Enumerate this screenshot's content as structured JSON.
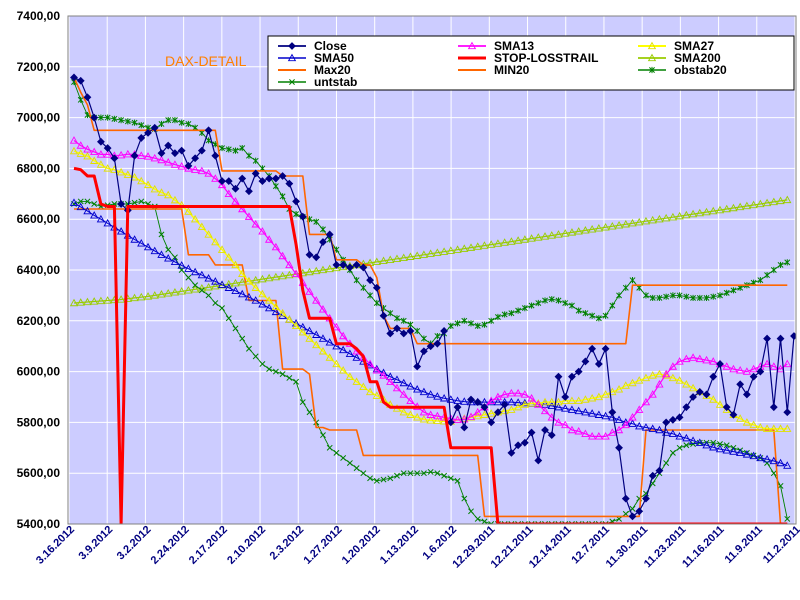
{
  "chart_data": {
    "type": "line",
    "title": "DAX-DETAIL",
    "ylim": [
      5400,
      7400
    ],
    "y_ticks": [
      "7400,00",
      "7200,00",
      "7000,00",
      "6800,00",
      "6600,00",
      "6400,00",
      "6200,00",
      "6000,00",
      "5800,00",
      "5600,00",
      "5400,00"
    ],
    "x_tick_labels": [
      "3.16.2012",
      "3.9.2012",
      "3.2.2012",
      "2.24.2012",
      "2.17.2012",
      "2.10.2012",
      "2.3.2012",
      "1.27.2012",
      "1.20.2012",
      "1.13.2012",
      "1.6.2012",
      "12.29.2011",
      "12.21.2011",
      "12.14.2011",
      "12.7.2011",
      "11.30.2011",
      "11.23.2011",
      "11.16.2011",
      "11.9.2011",
      "11.2.2011"
    ],
    "x_order": "newest-first",
    "grid": true,
    "legend_position": "top-right",
    "colors": {
      "plot_background": "#ccccff",
      "grid": "#ffffff",
      "close": "#000080",
      "sma13": "#ff00ff",
      "sma27": "#ffff00",
      "sma50": "#0000cc",
      "stoploss": "#ff0000",
      "sma200": "#99cc00",
      "max20": "#ff6600",
      "min20": "#ff6600",
      "obstab20": "#008000",
      "untstab": "#008000"
    },
    "series": [
      {
        "name": "Close",
        "key": "close",
        "values": [
          7158,
          7145,
          7080,
          7000,
          6905,
          6880,
          6840,
          6660,
          6635,
          6850,
          6920,
          6940,
          6960,
          6860,
          6890,
          6860,
          6870,
          6810,
          6840,
          6870,
          6950,
          6850,
          6750,
          6750,
          6720,
          6760,
          6710,
          6780,
          6750,
          6760,
          6760,
          6770,
          6740,
          6670,
          6610,
          6460,
          6450,
          6510,
          6540,
          6420,
          6420,
          6410,
          6420,
          6410,
          6360,
          6330,
          6220,
          6150,
          6170,
          6150,
          6160,
          6020,
          6080,
          6100,
          6110,
          6160,
          5800,
          5860,
          5780,
          5890,
          5880,
          5860,
          5800,
          5840,
          5870,
          5680,
          5710,
          5720,
          5760,
          5650,
          5770,
          5750,
          5980,
          5900,
          5980,
          6000,
          6040,
          6090,
          6030,
          6090,
          5840,
          5700,
          5500,
          5430,
          5450,
          5500,
          5590,
          5610,
          5800,
          5810,
          5820,
          5860,
          5900,
          5920,
          5910,
          5980,
          6030,
          5860,
          5830,
          5950,
          5910,
          5980,
          6000,
          6130,
          5860,
          6130,
          5840,
          6140
        ]
      },
      {
        "name": "SMA13",
        "key": "sma13",
        "values": [
          6910,
          6890,
          6875,
          6865,
          6855,
          6855,
          6850,
          6852,
          6856,
          6855,
          6850,
          6847,
          6840,
          6833,
          6824,
          6815,
          6808,
          6800,
          6795,
          6790,
          6780,
          6760,
          6735,
          6700,
          6670,
          6640,
          6610,
          6580,
          6552,
          6520,
          6490,
          6455,
          6420,
          6385,
          6350,
          6315,
          6280,
          6245,
          6210,
          6175,
          6140,
          6110,
          6080,
          6055,
          6030,
          6005,
          5985,
          5960,
          5935,
          5910,
          5885,
          5862,
          5840,
          5830,
          5825,
          5820,
          5815,
          5810,
          5812,
          5822,
          5840,
          5860,
          5885,
          5900,
          5910,
          5915,
          5915,
          5910,
          5895,
          5870,
          5845,
          5820,
          5800,
          5790,
          5770,
          5765,
          5755,
          5745,
          5745,
          5745,
          5760,
          5770,
          5790,
          5820,
          5850,
          5880,
          5910,
          5950,
          5990,
          6020,
          6040,
          6050,
          6055,
          6050,
          6045,
          6040,
          6030,
          6020,
          6010,
          6005,
          6000,
          6010,
          6020,
          6030,
          6020,
          6010,
          6030
        ]
      },
      {
        "name": "SMA27",
        "key": "sma27",
        "values": [
          6868,
          6858,
          6848,
          6830,
          6815,
          6800,
          6795,
          6785,
          6775,
          6765,
          6750,
          6735,
          6718,
          6705,
          6695,
          6675,
          6655,
          6630,
          6600,
          6570,
          6540,
          6510,
          6480,
          6450,
          6420,
          6385,
          6355,
          6330,
          6305,
          6280,
          6255,
          6230,
          6205,
          6180,
          6155,
          6130,
          6105,
          6080,
          6055,
          6030,
          6005,
          5980,
          5960,
          5940,
          5920,
          5905,
          5890,
          5870,
          5855,
          5840,
          5830,
          5820,
          5812,
          5808,
          5806,
          5804,
          5803,
          5810,
          5815,
          5820,
          5825,
          5830,
          5835,
          5840,
          5845,
          5850,
          5860,
          5870,
          5875,
          5875,
          5880,
          5880,
          5880,
          5885,
          5885,
          5885,
          5890,
          5895,
          5900,
          5910,
          5920,
          5930,
          5945,
          5955,
          5965,
          5975,
          5985,
          5990,
          5985,
          5975,
          5965,
          5950,
          5935,
          5920,
          5905,
          5890,
          5870,
          5850,
          5830,
          5815,
          5800,
          5790,
          5780,
          5775,
          5775,
          5775,
          5775
        ]
      },
      {
        "name": "SMA50",
        "key": "sma50",
        "values": [
          6665,
          6648,
          6632,
          6615,
          6600,
          6584,
          6568,
          6552,
          6536,
          6520,
          6505,
          6490,
          6475,
          6460,
          6446,
          6432,
          6418,
          6405,
          6392,
          6380,
          6367,
          6355,
          6342,
          6330,
          6318,
          6305,
          6293,
          6280,
          6265,
          6250,
          6235,
          6220,
          6205,
          6190,
          6175,
          6160,
          6145,
          6130,
          6115,
          6100,
          6085,
          6070,
          6055,
          6040,
          6025,
          6010,
          5995,
          5980,
          5968,
          5955,
          5942,
          5930,
          5920,
          5910,
          5902,
          5895,
          5890,
          5885,
          5882,
          5880,
          5880,
          5880,
          5880,
          5880,
          5880,
          5880,
          5878,
          5876,
          5874,
          5872,
          5870,
          5865,
          5860,
          5855,
          5850,
          5845,
          5840,
          5835,
          5830,
          5825,
          5820,
          5810,
          5800,
          5795,
          5785,
          5780,
          5775,
          5770,
          5760,
          5755,
          5745,
          5738,
          5728,
          5720,
          5710,
          5702,
          5695,
          5690,
          5685,
          5680,
          5674,
          5668,
          5660,
          5655,
          5648,
          5640,
          5630
        ]
      },
      {
        "name": "STOP-LOSSTRAIL",
        "key": "stoploss",
        "values": [
          6800,
          6795,
          6770,
          6770,
          6660,
          6650,
          6650,
          5400,
          6650,
          6650,
          6650,
          6650,
          6650,
          6650,
          6650,
          6650,
          6650,
          6650,
          6650,
          6650,
          6650,
          6650,
          6650,
          6650,
          6650,
          6650,
          6650,
          6650,
          6650,
          6650,
          6650,
          6650,
          6650,
          6500,
          6320,
          6210,
          6210,
          6210,
          6210,
          6110,
          6110,
          6110,
          6090,
          6060,
          5960,
          5960,
          5880,
          5860,
          5860,
          5860,
          5860,
          5860,
          5860,
          5860,
          5860,
          5860,
          5700,
          5700,
          5700,
          5700,
          5700,
          5700,
          5700,
          5400,
          5400,
          5400,
          5400,
          5400,
          5400,
          5400,
          5400,
          5400,
          5400,
          5400,
          5400,
          5400,
          5400,
          5400,
          5400,
          5400,
          5400,
          5400,
          5400,
          5400,
          5400,
          5400,
          5400,
          5400,
          5400,
          5400,
          5400,
          5400,
          5400,
          5400,
          5400,
          5400,
          5400,
          5400,
          5400,
          5400,
          5400,
          5400,
          5400,
          5400,
          5400,
          5400,
          5400
        ]
      },
      {
        "name": "SMA200",
        "key": "sma200",
        "values": [
          6270,
          6272,
          6274,
          6276,
          6278,
          6280,
          6282,
          6284,
          6287,
          6290,
          6293,
          6296,
          6300,
          6304,
          6308,
          6312,
          6316,
          6320,
          6324,
          6328,
          6332,
          6336,
          6340,
          6344,
          6348,
          6352,
          6356,
          6360,
          6364,
          6368,
          6372,
          6376,
          6380,
          6384,
          6388,
          6392,
          6396,
          6400,
          6404,
          6408,
          6412,
          6416,
          6420,
          6424,
          6428,
          6432,
          6436,
          6440,
          6444,
          6448,
          6452,
          6456,
          6460,
          6464,
          6468,
          6472,
          6476,
          6480,
          6484,
          6488,
          6492,
          6496,
          6500,
          6504,
          6508,
          6512,
          6516,
          6520,
          6524,
          6528,
          6532,
          6536,
          6540,
          6544,
          6548,
          6552,
          6556,
          6560,
          6564,
          6568,
          6572,
          6576,
          6580,
          6584,
          6588,
          6592,
          6596,
          6600,
          6604,
          6608,
          6612,
          6616,
          6620,
          6624,
          6628,
          6632,
          6636,
          6640,
          6644,
          6648,
          6652,
          6656,
          6660,
          6664,
          6668,
          6672,
          6676
        ]
      },
      {
        "name": "Max20",
        "key": "max20",
        "values": [
          7158,
          7100,
          7050,
          6950,
          6950,
          6950,
          6950,
          6950,
          6950,
          6950,
          6950,
          6950,
          6950,
          6950,
          6950,
          6950,
          6950,
          6950,
          6950,
          6950,
          6950,
          6950,
          6790,
          6790,
          6790,
          6790,
          6790,
          6790,
          6790,
          6790,
          6790,
          6770,
          6770,
          6770,
          6770,
          6540,
          6540,
          6540,
          6540,
          6440,
          6440,
          6440,
          6440,
          6420,
          6420,
          6370,
          6220,
          6170,
          6170,
          6170,
          6170,
          6110,
          6110,
          6110,
          6110,
          6110,
          6110,
          6110,
          6110,
          6110,
          6110,
          6110,
          6110,
          6110,
          6110,
          6110,
          6110,
          6110,
          6110,
          6110,
          6110,
          6110,
          6110,
          6110,
          6110,
          6110,
          6110,
          6110,
          6110,
          6110,
          6110,
          6110,
          6110,
          6340,
          6340,
          6340,
          6340,
          6340,
          6340,
          6340,
          6340,
          6340,
          6340,
          6340,
          6340,
          6340,
          6340,
          6340,
          6340,
          6340,
          6340,
          6340,
          6340,
          6340,
          6340,
          6340,
          6340
        ]
      },
      {
        "name": "MIN20",
        "key": "min20",
        "values": [
          6640,
          6640,
          6640,
          6640,
          6640,
          6640,
          6640,
          6640,
          6640,
          6640,
          6640,
          6640,
          6640,
          6640,
          6640,
          6640,
          6640,
          6460,
          6460,
          6460,
          6460,
          6420,
          6420,
          6420,
          6420,
          6420,
          6280,
          6280,
          6280,
          6280,
          6280,
          6010,
          6010,
          6010,
          6010,
          5990,
          5780,
          5780,
          5770,
          5770,
          5770,
          5770,
          5770,
          5670,
          5670,
          5670,
          5670,
          5670,
          5670,
          5670,
          5670,
          5670,
          5670,
          5670,
          5670,
          5670,
          5670,
          5670,
          5670,
          5670,
          5670,
          5430,
          5430,
          5430,
          5430,
          5430,
          5430,
          5430,
          5430,
          5430,
          5430,
          5430,
          5430,
          5430,
          5430,
          5430,
          5430,
          5430,
          5430,
          5430,
          5430,
          5430,
          5430,
          5430,
          5430,
          5770,
          5770,
          5770,
          5770,
          5770,
          5770,
          5770,
          5770,
          5770,
          5770,
          5770,
          5770,
          5770,
          5770,
          5770,
          5770,
          5770,
          5770,
          5770,
          5770,
          5400,
          5400
        ]
      },
      {
        "name": "obstab20",
        "key": "obstab20",
        "values": [
          7140,
          7070,
          7010,
          7000,
          7000,
          7000,
          6995,
          6990,
          6985,
          6980,
          6970,
          6960,
          6955,
          6975,
          6990,
          6990,
          6980,
          6975,
          6960,
          6940,
          6910,
          6895,
          6880,
          6875,
          6870,
          6880,
          6850,
          6830,
          6800,
          6770,
          6730,
          6690,
          6640,
          6620,
          6610,
          6600,
          6590,
          6560,
          6520,
          6480,
          6440,
          6400,
          6360,
          6330,
          6300,
          6270,
          6250,
          6230,
          6210,
          6200,
          6185,
          6160,
          6130,
          6110,
          6140,
          6150,
          6180,
          6190,
          6200,
          6190,
          6180,
          6185,
          6200,
          6215,
          6225,
          6230,
          6240,
          6250,
          6260,
          6270,
          6280,
          6285,
          6280,
          6270,
          6260,
          6240,
          6230,
          6220,
          6210,
          6220,
          6260,
          6300,
          6330,
          6360,
          6330,
          6300,
          6290,
          6290,
          6295,
          6300,
          6300,
          6295,
          6290,
          6290,
          6290,
          6295,
          6300,
          6310,
          6320,
          6330,
          6340,
          6350,
          6360,
          6380,
          6400,
          6420,
          6430
        ]
      },
      {
        "name": "untstab",
        "key": "untstab",
        "values": [
          6660,
          6670,
          6670,
          6660,
          6650,
          6655,
          6660,
          6660,
          6660,
          6665,
          6670,
          6660,
          6650,
          6540,
          6480,
          6450,
          6400,
          6370,
          6340,
          6320,
          6300,
          6270,
          6250,
          6210,
          6170,
          6130,
          6090,
          6060,
          6030,
          6010,
          6000,
          5990,
          5975,
          5960,
          5880,
          5840,
          5800,
          5750,
          5700,
          5680,
          5660,
          5640,
          5620,
          5600,
          5580,
          5570,
          5575,
          5580,
          5590,
          5600,
          5600,
          5600,
          5600,
          5605,
          5600,
          5590,
          5580,
          5570,
          5500,
          5450,
          5420,
          5410,
          5400,
          5400,
          5400,
          5400,
          5400,
          5400,
          5400,
          5400,
          5400,
          5400,
          5400,
          5400,
          5400,
          5400,
          5400,
          5400,
          5400,
          5400,
          5410,
          5420,
          5440,
          5460,
          5500,
          5520,
          5560,
          5600,
          5640,
          5680,
          5700,
          5710,
          5715,
          5720,
          5720,
          5720,
          5715,
          5710,
          5700,
          5690,
          5680,
          5670,
          5660,
          5640,
          5600,
          5550,
          5420
        ]
      }
    ]
  }
}
